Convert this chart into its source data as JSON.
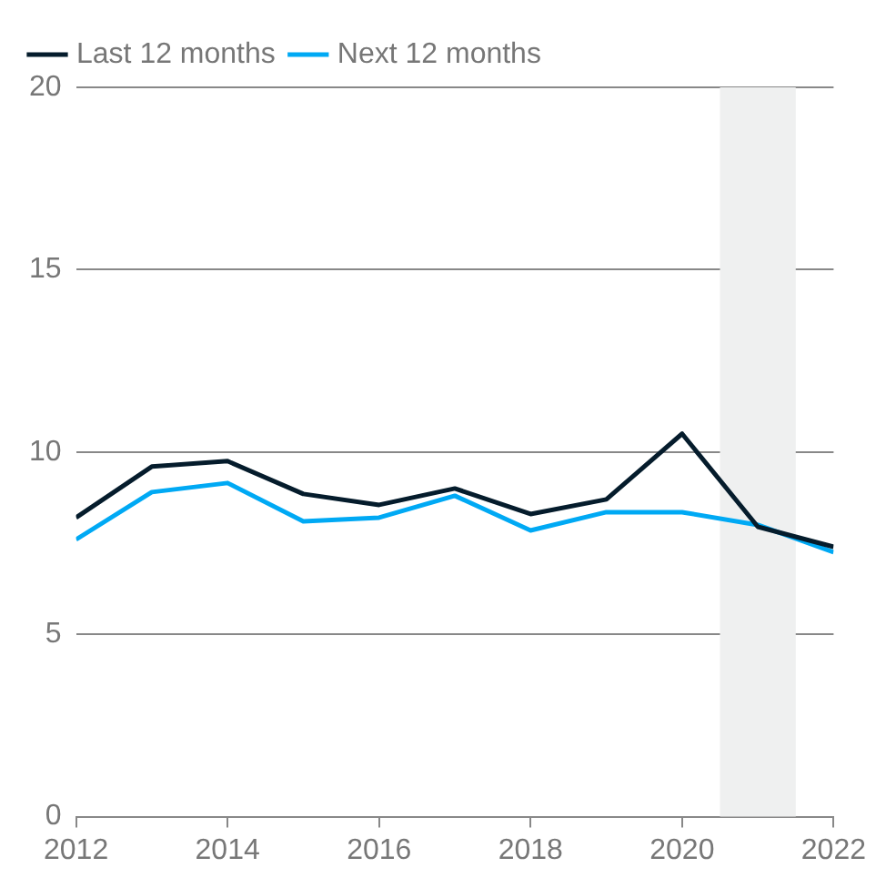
{
  "chart_data": {
    "type": "line",
    "x": [
      2012,
      2013,
      2014,
      2015,
      2016,
      2017,
      2018,
      2019,
      2020,
      2021,
      2022
    ],
    "series": [
      {
        "name": "Last 12 months",
        "color": "#051c2c",
        "values": [
          8.2,
          9.6,
          9.75,
          8.85,
          8.55,
          9.0,
          8.3,
          8.7,
          10.5,
          7.95,
          7.4
        ]
      },
      {
        "name": "Next 12 months",
        "color": "#00a9f4",
        "values": [
          7.6,
          8.9,
          9.15,
          8.1,
          8.2,
          8.8,
          7.85,
          8.35,
          8.35,
          8.0,
          7.25
        ]
      }
    ],
    "xlim": [
      2012,
      2022
    ],
    "xticks": [
      2012,
      2014,
      2016,
      2018,
      2020,
      2022
    ],
    "ylim": [
      0,
      20
    ],
    "yticks": [
      0,
      5,
      10,
      15,
      20
    ],
    "bands": [
      {
        "axis": "x",
        "from": 2020.5,
        "to": 2021.5,
        "color": "#eff0f0"
      }
    ],
    "grid": "y",
    "legend": "top left",
    "marker": "none",
    "line_style": "solid"
  }
}
